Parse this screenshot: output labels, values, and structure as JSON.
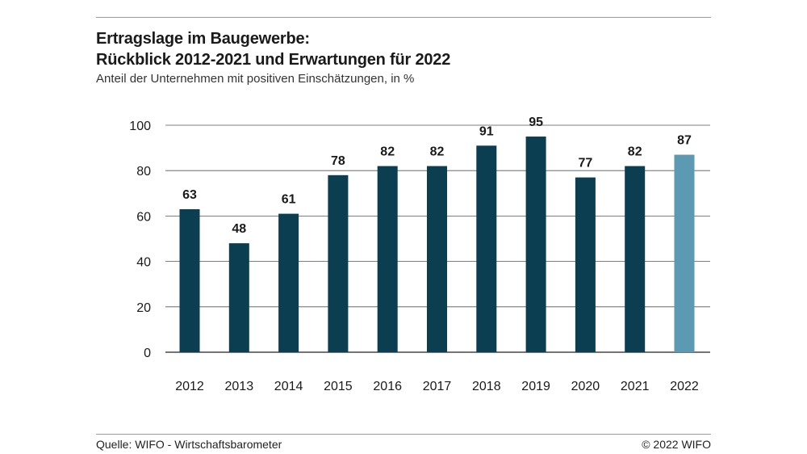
{
  "header": {
    "title_line1": "Ertragslage im Baugewerbe:",
    "title_line2": "Rückblick 2012-2021 und Erwartungen für 2022",
    "subtitle": "Anteil der Unternehmen mit positiven Einschätzungen, in %"
  },
  "footer": {
    "source": "Quelle: WIFO - Wirtschaftsbarometer",
    "copyright": "© 2022 WIFO"
  },
  "chart_data": {
    "type": "bar",
    "title": "Ertragslage im Baugewerbe: Rückblick 2012-2021 und Erwartungen für 2022",
    "subtitle": "Anteil der Unternehmen mit positiven Einschätzungen, in %",
    "xlabel": "",
    "ylabel": "",
    "categories": [
      "2012",
      "2013",
      "2014",
      "2015",
      "2016",
      "2017",
      "2018",
      "2019",
      "2020",
      "2021",
      "2022"
    ],
    "values": [
      63,
      48,
      61,
      78,
      82,
      82,
      91,
      95,
      77,
      82,
      87
    ],
    "ylim": [
      0,
      100
    ],
    "yticks": [
      0,
      20,
      40,
      60,
      80,
      100
    ],
    "grid": true,
    "data_labels": true,
    "colors": {
      "history": "#0c3e52",
      "expectation": "#5b9ab2",
      "grid": "#555555"
    },
    "highlight_category": "2022"
  }
}
